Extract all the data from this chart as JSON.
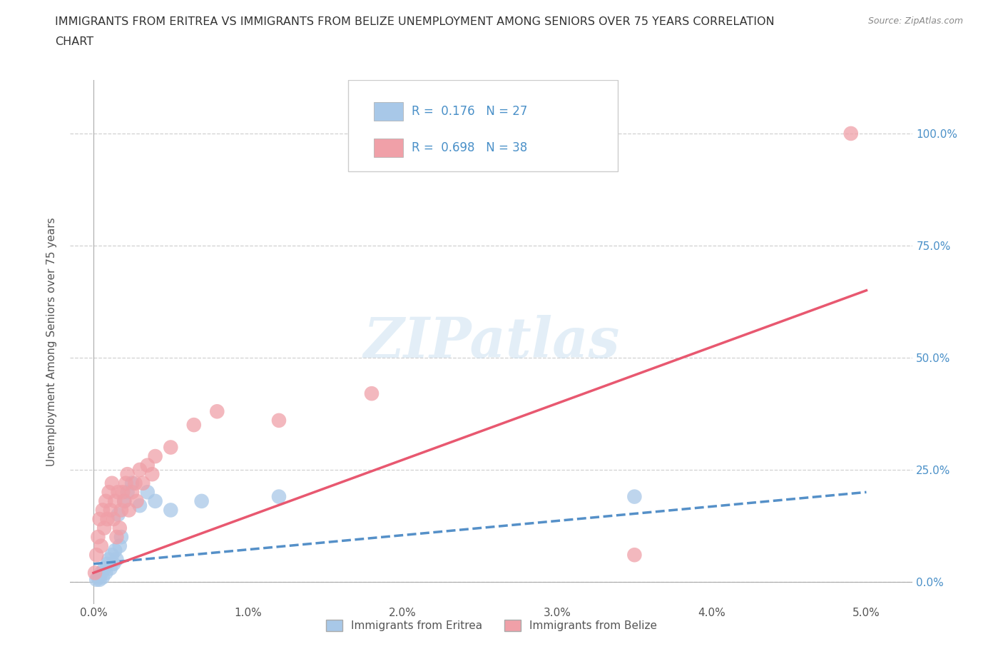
{
  "title_line1": "IMMIGRANTS FROM ERITREA VS IMMIGRANTS FROM BELIZE UNEMPLOYMENT AMONG SENIORS OVER 75 YEARS CORRELATION",
  "title_line2": "CHART",
  "source": "Source: ZipAtlas.com",
  "ylabel": "Unemployment Among Seniors over 75 years",
  "x_tick_labels": [
    "0.0%",
    "1.0%",
    "2.0%",
    "3.0%",
    "4.0%",
    "5.0%"
  ],
  "x_ticks": [
    0.0,
    1.0,
    2.0,
    3.0,
    4.0,
    5.0
  ],
  "y_ticks": [
    0.0,
    0.25,
    0.5,
    0.75,
    1.0
  ],
  "y_tick_labels": [
    "0.0%",
    "25.0%",
    "50.0%",
    "75.0%",
    "100.0%"
  ],
  "xlim": [
    -0.15,
    5.3
  ],
  "ylim": [
    -0.05,
    1.12
  ],
  "eritrea_color": "#a8c8e8",
  "eritrea_line_color": "#5590c8",
  "belize_color": "#f0a0a8",
  "belize_line_color": "#e85870",
  "eritrea_R": 0.176,
  "eritrea_N": 27,
  "belize_R": 0.698,
  "belize_N": 38,
  "legend_label_eritrea": "Immigrants from Eritrea",
  "legend_label_belize": "Immigrants from Belize",
  "watermark_color": "#c8dff0",
  "background_color": "#ffffff",
  "grid_color": "#cccccc",
  "right_tick_color": "#4a90c8",
  "eritrea_x": [
    0.02,
    0.03,
    0.04,
    0.05,
    0.06,
    0.07,
    0.08,
    0.09,
    0.1,
    0.11,
    0.12,
    0.13,
    0.14,
    0.15,
    0.16,
    0.17,
    0.18,
    0.2,
    0.22,
    0.25,
    0.3,
    0.35,
    0.4,
    0.5,
    0.7,
    1.2,
    3.5
  ],
  "eritrea_y": [
    0.005,
    0.01,
    0.005,
    0.02,
    0.01,
    0.03,
    0.02,
    0.04,
    0.05,
    0.03,
    0.06,
    0.04,
    0.07,
    0.05,
    0.15,
    0.08,
    0.1,
    0.18,
    0.2,
    0.22,
    0.17,
    0.2,
    0.18,
    0.16,
    0.18,
    0.19,
    0.19
  ],
  "belize_x": [
    0.01,
    0.02,
    0.03,
    0.04,
    0.05,
    0.06,
    0.07,
    0.08,
    0.09,
    0.1,
    0.11,
    0.12,
    0.13,
    0.14,
    0.15,
    0.16,
    0.17,
    0.18,
    0.19,
    0.2,
    0.21,
    0.22,
    0.23,
    0.25,
    0.27,
    0.28,
    0.3,
    0.32,
    0.35,
    0.38,
    0.4,
    0.5,
    0.65,
    0.8,
    1.2,
    1.8,
    3.5,
    4.9
  ],
  "belize_y": [
    0.02,
    0.06,
    0.1,
    0.14,
    0.08,
    0.16,
    0.12,
    0.18,
    0.14,
    0.2,
    0.16,
    0.22,
    0.14,
    0.18,
    0.1,
    0.2,
    0.12,
    0.16,
    0.2,
    0.18,
    0.22,
    0.24,
    0.16,
    0.2,
    0.22,
    0.18,
    0.25,
    0.22,
    0.26,
    0.24,
    0.28,
    0.3,
    0.35,
    0.38,
    0.36,
    0.42,
    0.06,
    1.0
  ],
  "eritrea_line_start_x": 0.0,
  "eritrea_line_end_x": 5.0,
  "eritrea_line_start_y": 0.04,
  "eritrea_line_end_y": 0.2,
  "belize_line_start_x": 0.0,
  "belize_line_end_x": 5.0,
  "belize_line_start_y": 0.02,
  "belize_line_end_y": 0.65
}
